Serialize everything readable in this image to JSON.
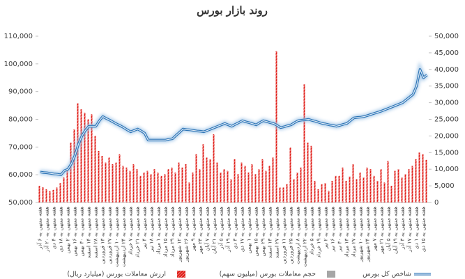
{
  "chart_data": {
    "type": "combo",
    "title": "روند بازار بورس",
    "categories": [
      "هفته منتهی به ۶ آذر",
      null,
      "هفته منتهی به ۲۰ آذر",
      null,
      "هفته منتهی به ۴ دی",
      null,
      "هفته منتهی به ۱۸ دی",
      null,
      "هفته منتهی به ۲ بهمن",
      null,
      "هفته منتهی به ۱۶ بهمن",
      null,
      "هفته منتهی به ۳۰ بهمن",
      null,
      "هفته منتهی به ۱۴ اسفند",
      null,
      "هفته منتهی به ۲۸ اسفند",
      null,
      "هفته منتهی به ۱۳ فروردین",
      null,
      "هفته منتهی به ۲۷ فروردین",
      null,
      "هفته منتهی به ۱۰ اردیبهشت",
      null,
      "هفته منتهی به ۲۴ اردیبهشت",
      null,
      "هفته منتهی به ۷ خرداد",
      null,
      "هفته منتهی به ۲۱ خرداد",
      null,
      "هفته منتهی به ۴ تیر",
      null,
      "هفته منتهی به ۱۸ تیر",
      null,
      "هفته منتهی به ۱ مرداد",
      null,
      "هفته منتهی به ۱۵ مرداد",
      null,
      "هفته منتهی به ۲۹ مرداد",
      null,
      "هفته منتهی به ۱۲ شهریور",
      null,
      "هفته منتهی به ۲۶ شهریور",
      null,
      "هفته منتهی به ۹ مهر",
      null,
      "هفته منتهی به ۲۳ مهر",
      null,
      "هفته منتهی به ۷ آبان",
      null,
      "هفته منتهی به ۲۱ آبان",
      null,
      "هفته منتهی به ۵ آذر",
      null,
      "هفته منتهی به ۱۹ آذر",
      null,
      "هفته منتهی به ۳ دی",
      null,
      "هفته منتهی به ۱۷ دی",
      null,
      "هفته منتهی به ۱ بهمن",
      null,
      "هفته منتهی به ۱۵ بهمن",
      null,
      "هفته منتهی به ۲۹ بهمن",
      null,
      "هفته منتهی به ۱۳ اسفند",
      null,
      "هفته منتهی به ۲۷ اسفند",
      null,
      "هفته منتهی به ۱۱ فروردین",
      null,
      "هفته منتهی به ۲۵ فروردین",
      null,
      "هفته منتهی به ۸ اردیبهشت",
      null,
      "هفته منتهی به ۲۲ اردیبهشت",
      null,
      "هفته منتهی به ۵ خرداد",
      null,
      "هفته منتهی به ۱۹ خرداد",
      null,
      "هفته منتهی به ۲ تیر",
      null,
      "هفته منتهی به ۱۶ تیر",
      null,
      "هفته منتهی به ۳۰ تیر",
      null,
      "هفته منتهی به ۱۳ مرداد",
      null,
      "هفته منتهی به ۲۷ مرداد",
      null,
      "هفته منتهی به ۱۰ شهریور",
      null,
      "هفته منتهی به ۲۴ شهریور",
      null,
      "هفته منتهی به ۷ مهر",
      null,
      "هفته منتهی به ۲۱ مهر",
      null,
      "هفته منتهی به ۵ آبان",
      null,
      "هفته منتهی به ۱۹ آبان",
      null,
      "هفته منتهی به ۳ آذر",
      null,
      "هفته منتهی به ۱۷ آذر",
      null,
      "هفته منتهی به ۱ دی",
      null,
      "هفته منتهی به ۱۵ دی",
      null
    ],
    "series": [
      {
        "name": "ارزش معاملات بورس (میلیارد ریال)",
        "type": "bar",
        "axis": "y2",
        "color": "#e0201b",
        "values": [
          5000,
          4600,
          4000,
          3400,
          3800,
          4500,
          5800,
          7500,
          10000,
          18000,
          22000,
          29800,
          28000,
          27000,
          25000,
          26500,
          20000,
          15500,
          14000,
          12000,
          13500,
          11500,
          12000,
          14500,
          11000,
          10500,
          9500,
          11500,
          10000,
          8000,
          9000,
          9500,
          8500,
          10000,
          9000,
          8000,
          8500,
          10000,
          10500,
          9000,
          12000,
          10500,
          11500,
          6000,
          9000,
          14500,
          10000,
          17500,
          13500,
          13000,
          20500,
          12000,
          9000,
          10000,
          9500,
          7000,
          13000,
          8500,
          12000,
          11000,
          9000,
          11500,
          8500,
          10000,
          13000,
          9500,
          11000,
          13500,
          45500,
          4500,
          4500,
          5500,
          16500,
          7000,
          9000,
          10500,
          35500,
          18000,
          17000,
          6500,
          4000,
          5500,
          5800,
          3500,
          6500,
          8000,
          8000,
          10500,
          6500,
          7800,
          11500,
          7000,
          9000,
          7500,
          10500,
          10000,
          8000,
          6500,
          10000,
          6000,
          12500,
          5000,
          9500,
          10000,
          7500,
          8500,
          10000,
          11000,
          13000,
          15000,
          14500,
          12800
        ]
      },
      {
        "name": "حجم معاملات بورس (میلیون سهم)",
        "type": "bar",
        "axis": "y2",
        "color": "#a6a6a6",
        "values": [
          null,
          null,
          null,
          null,
          null,
          null,
          null,
          null,
          null,
          null,
          null,
          null,
          null,
          null,
          null,
          null,
          null,
          null,
          null,
          null,
          null,
          null,
          null,
          null,
          null,
          null,
          null,
          null,
          null,
          null,
          null,
          null,
          null,
          null,
          null,
          null,
          null,
          null,
          null,
          null,
          null,
          null,
          null,
          null,
          null,
          null,
          null,
          null,
          null,
          null,
          null,
          null,
          null,
          null,
          null,
          null,
          null,
          null,
          null,
          null,
          null,
          null,
          null,
          null,
          null,
          null,
          null,
          null,
          null,
          null,
          null,
          null,
          null,
          null,
          null,
          null,
          null,
          null,
          null,
          null,
          null,
          null,
          null,
          null,
          null,
          null,
          null,
          null,
          null,
          null,
          null,
          null,
          null,
          null,
          null,
          null,
          null,
          null,
          null,
          null,
          null,
          null,
          null,
          null,
          null,
          null,
          null,
          null,
          null,
          null,
          null,
          null
        ]
      },
      {
        "name": "شاخص کل بورس",
        "type": "line",
        "axis": "y",
        "color": "#2e75b6",
        "values": [
          61000,
          60800,
          60700,
          60500,
          60300,
          60200,
          60000,
          61500,
          62000,
          64000,
          67000,
          71000,
          74000,
          76000,
          77500,
          77500,
          77500,
          79500,
          81000,
          80300,
          79700,
          79000,
          78300,
          77700,
          77000,
          76200,
          75500,
          76000,
          76500,
          75800,
          75000,
          72500,
          72500,
          72500,
          72500,
          72500,
          72500,
          72800,
          73000,
          74200,
          75300,
          76500,
          76300,
          76200,
          76000,
          75800,
          75700,
          75500,
          76000,
          76500,
          77000,
          77500,
          78000,
          78500,
          78000,
          77500,
          78200,
          78800,
          79500,
          79100,
          78800,
          78400,
          78000,
          78800,
          79500,
          79200,
          78800,
          78500,
          77800,
          77000,
          77300,
          77700,
          78000,
          78800,
          79500,
          79700,
          79800,
          80000,
          79600,
          79300,
          78900,
          78500,
          78300,
          78000,
          77800,
          77500,
          77800,
          78200,
          78500,
          79500,
          80500,
          80700,
          80800,
          81000,
          81400,
          81800,
          82200,
          82600,
          83000,
          83500,
          84000,
          84500,
          85000,
          85500,
          86000,
          87000,
          88000,
          89000,
          92000,
          98000,
          95000,
          96000
        ]
      }
    ],
    "ylim": [
      50000,
      110000
    ],
    "yticks": [
      {
        "value": 50000,
        "label": "50,000"
      },
      {
        "value": 60000,
        "label": "60,000"
      },
      {
        "value": 70000,
        "label": "70,000"
      },
      {
        "value": 80000,
        "label": "80,000"
      },
      {
        "value": 90000,
        "label": "90,000"
      },
      {
        "value": 100000,
        "label": "100,000"
      },
      {
        "value": 110000,
        "label": "110,000"
      }
    ],
    "y2lim": [
      0,
      50000
    ],
    "y2ticks": [
      0,
      {
        "value": 5000,
        "label": "5,000"
      },
      {
        "value": 10000,
        "label": "10,000"
      },
      {
        "value": 15000,
        "label": "15,000"
      },
      {
        "value": 20000,
        "label": "20,000"
      },
      {
        "value": 25000,
        "label": "25,000"
      },
      {
        "value": 30000,
        "label": "30,000"
      },
      {
        "value": 35000,
        "label": "35,000"
      },
      {
        "value": 40000,
        "label": "40,000"
      },
      {
        "value": 45000,
        "label": "45,000"
      },
      {
        "value": 50000,
        "label": "50,000"
      }
    ],
    "grid": false
  }
}
